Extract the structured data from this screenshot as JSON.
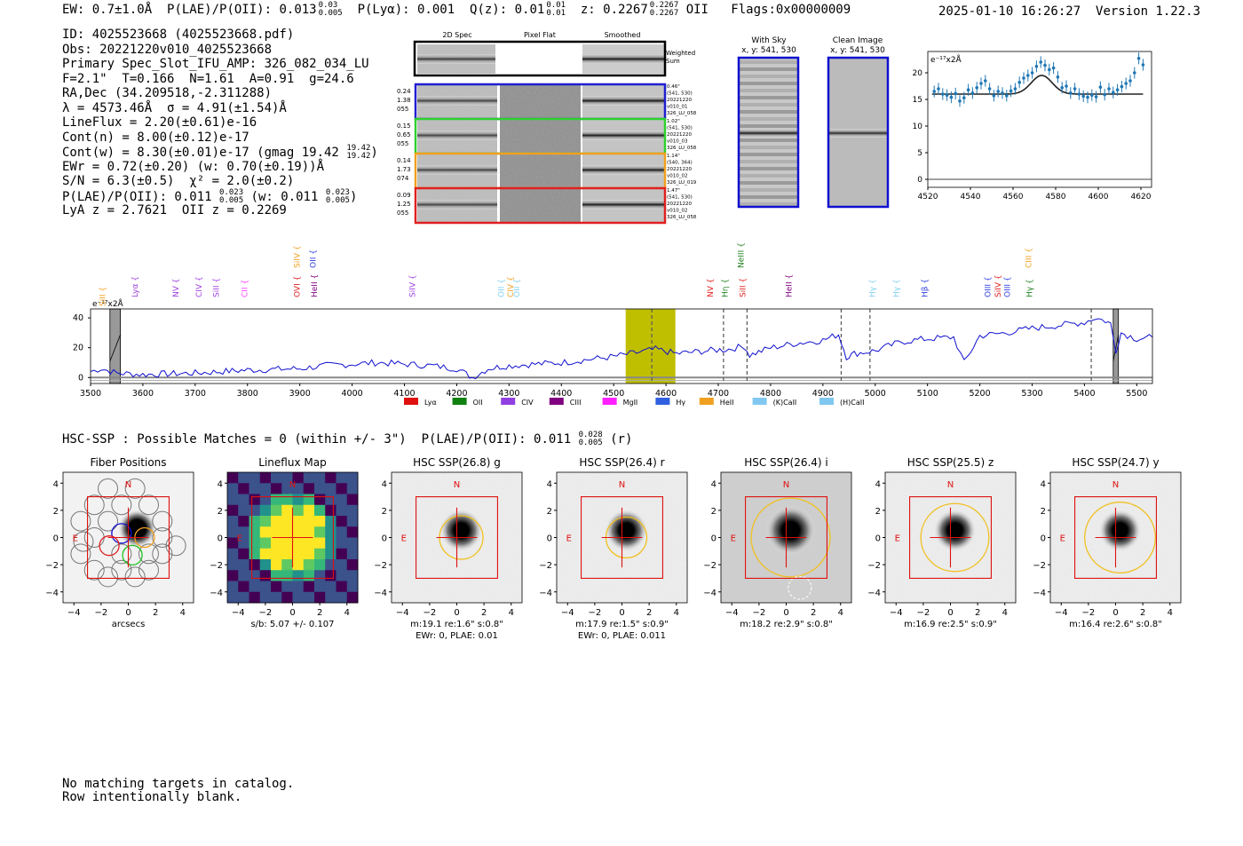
{
  "header": {
    "ew": "EW: 0.7±1.0Å",
    "plae_label": "P(LAE)/P(OII):",
    "plae_value": "0.013",
    "plae_up": "0.03",
    "plae_lo": "0.005",
    "plya": "P(Lyα): 0.001",
    "qz_label": "Q(z):",
    "qz_value": "0.01",
    "qz_up": "0.01",
    "qz_lo": "0.01",
    "z_label": "z:",
    "z_value": "0.2267",
    "z_up": "0.2267",
    "z_lo": "0.2267",
    "z_line": "OII",
    "flags": "Flags:0x00000009",
    "timestamp": "2025-01-10 16:26:27",
    "version": "Version 1.22.3"
  },
  "info": {
    "id": "ID: 4025523668 (4025523668.pdf)",
    "obs": "Obs: 20221220v010_4025523668",
    "primary": "Primary Spec_Slot_IFU_AMP: 326_082_034_LU",
    "params": "F=2.1\"  T=0.166  N=1.61  A=0.91  g=24.6",
    "radec": "RA,Dec (34.209518,-2.311288)",
    "lambda": "λ = 4573.46Å  σ = 4.91(±1.54)Å",
    "lineflux": "LineFlux = 2.20(±0.61)e-16",
    "contn": "Cont(n) = 8.00(±0.12)e-17",
    "contw": "Cont(w) = 8.30(±0.01)e-17 (gmag 19.42",
    "contw_up": "19.42",
    "contw_lo": "19.42",
    "ewr": "EWr = 0.72(±0.20) (w: 0.70(±0.19))Å",
    "sn": "S/N = 6.3(±0.5)  χ² = 2.0(±0.2)",
    "plae2": "P(LAE)/P(OII): 0.011",
    "plae2_up": "0.023",
    "plae2_lo": "0.005",
    "plae2_w": "(w: 0.011",
    "plae2_w_up": "0.023",
    "plae2_w_lo": "0.005",
    "lyaz": "LyA z = 2.7621  OII z = 0.2269"
  },
  "cutouts": {
    "col_headers": [
      "2D Spec",
      "Pixel Flat",
      "Smoothed"
    ],
    "weighted_sum": [
      "Weighted",
      "Sum"
    ],
    "rows": [
      {
        "color": "#1f1fd0",
        "left": [
          "0.24",
          "1.38",
          "055"
        ],
        "right": [
          "0.46\"",
          "(541, 530)",
          "20221220",
          "v010_01",
          "326_LU_058"
        ]
      },
      {
        "color": "#2fd02f",
        "left": [
          "0.15",
          "0.65",
          "055"
        ],
        "right": [
          "1.02\"",
          "(541, 530)",
          "20221220",
          "v010_03",
          "326_LU_058"
        ]
      },
      {
        "color": "#f0a020",
        "left": [
          "0.14",
          "1.73",
          "074"
        ],
        "right": [
          "1.14\"",
          "(540, 364)",
          "20221220",
          "v010_02",
          "326_LU_019"
        ]
      },
      {
        "color": "#e02020",
        "left": [
          "0.09",
          "1.25",
          "055"
        ],
        "right": [
          "1.47\"",
          "(541, 530)",
          "20221220",
          "v010_02",
          "326_LU_058"
        ]
      }
    ],
    "with_sky_title": "With Sky",
    "with_sky_coords": "x, y: 541, 530",
    "clean_title": "Clean Image",
    "clean_coords": "x, y: 541, 530"
  },
  "zoom_chart": {
    "type": "scatter",
    "unit_label": "e⁻¹⁷x2Å",
    "xlim": [
      4520,
      4625
    ],
    "ylim": [
      -1.5,
      24
    ],
    "xticks": [
      4520,
      4540,
      4560,
      4580,
      4600,
      4620
    ],
    "yticks": [
      0,
      5,
      10,
      15,
      20
    ],
    "x": [
      4523,
      4525,
      4527,
      4529,
      4531,
      4533,
      4535,
      4537,
      4539,
      4541,
      4543,
      4545,
      4547,
      4549,
      4551,
      4553,
      4555,
      4557,
      4559,
      4561,
      4563,
      4565,
      4567,
      4569,
      4571,
      4573,
      4575,
      4577,
      4579,
      4581,
      4583,
      4585,
      4587,
      4589,
      4591,
      4593,
      4595,
      4597,
      4599,
      4601,
      4603,
      4605,
      4607,
      4609,
      4611,
      4613,
      4615,
      4617,
      4619,
      4621
    ],
    "y": [
      16.5,
      17.0,
      16.0,
      15.8,
      15.4,
      16.1,
      14.7,
      15.3,
      16.8,
      16.2,
      17.2,
      18.0,
      18.5,
      17.0,
      15.7,
      16.5,
      16.2,
      15.7,
      16.6,
      17.0,
      18.2,
      19.0,
      19.5,
      20.0,
      21.2,
      22.0,
      21.4,
      20.6,
      20.9,
      19.2,
      17.2,
      17.5,
      16.2,
      17.0,
      16.0,
      15.6,
      15.4,
      15.8,
      15.5,
      17.3,
      15.9,
      17.0,
      16.3,
      16.8,
      17.4,
      18.0,
      18.5,
      20.0,
      22.7,
      21.5
    ],
    "fit_baseline": 16,
    "fit_amp": 3.5,
    "fit_center": 4573.46,
    "fit_sigma": 4.91
  },
  "full_spectrum": {
    "type": "line",
    "unit_label": "e⁻¹⁷x2Å",
    "xlim": [
      3500,
      5530
    ],
    "ylim": [
      -4,
      46
    ],
    "xticks": [
      3500,
      3600,
      3700,
      3800,
      3900,
      4000,
      4100,
      4200,
      4300,
      4400,
      4500,
      4600,
      4700,
      4800,
      4900,
      5000,
      5100,
      5200,
      5300,
      5400,
      5500
    ],
    "yticks": [
      0,
      20,
      40
    ],
    "highlight_range": [
      4523,
      4618
    ],
    "marker_lines": [
      4573,
      4710,
      4755,
      4935,
      4990,
      5413
    ],
    "masked_regions": [
      [
        3537,
        3557
      ],
      [
        5455,
        5465
      ]
    ],
    "spectrum_points": [
      [
        3500,
        4
      ],
      [
        3520,
        6
      ],
      [
        3550,
        3
      ],
      [
        3600,
        2
      ],
      [
        3700,
        3
      ],
      [
        3800,
        5
      ],
      [
        3900,
        6
      ],
      [
        3950,
        8
      ],
      [
        4000,
        9
      ],
      [
        4050,
        10
      ],
      [
        4100,
        9
      ],
      [
        4150,
        8
      ],
      [
        4200,
        6
      ],
      [
        4230,
        0
      ],
      [
        4260,
        6
      ],
      [
        4300,
        8
      ],
      [
        4350,
        9
      ],
      [
        4400,
        10
      ],
      [
        4450,
        12
      ],
      [
        4500,
        14
      ],
      [
        4550,
        17
      ],
      [
        4580,
        19
      ],
      [
        4620,
        16
      ],
      [
        4680,
        18
      ],
      [
        4720,
        19
      ],
      [
        4750,
        21
      ],
      [
        4760,
        15
      ],
      [
        4800,
        20
      ],
      [
        4850,
        23
      ],
      [
        4900,
        25
      ],
      [
        4930,
        29
      ],
      [
        4945,
        14
      ],
      [
        4960,
        16
      ],
      [
        5000,
        18
      ],
      [
        5050,
        24
      ],
      [
        5100,
        26
      ],
      [
        5150,
        27
      ],
      [
        5170,
        10
      ],
      [
        5200,
        28
      ],
      [
        5250,
        30
      ],
      [
        5300,
        33
      ],
      [
        5350,
        35
      ],
      [
        5400,
        37
      ],
      [
        5420,
        40
      ],
      [
        5440,
        38
      ],
      [
        5450,
        36
      ],
      [
        5460,
        18
      ],
      [
        5470,
        30
      ],
      [
        5500,
        26
      ],
      [
        5530,
        27
      ]
    ],
    "line_labels": [
      {
        "text": "SiII",
        "x": 3528,
        "color": "#f0a020",
        "row": 2
      },
      {
        "text": "Lyα",
        "x": 3590,
        "color": "#a040e0",
        "row": 1
      },
      {
        "text": "NV",
        "x": 3668,
        "color": "#a040e0",
        "row": 1
      },
      {
        "text": "CIV",
        "x": 3712,
        "color": "#a040e0",
        "row": 1
      },
      {
        "text": "SiII",
        "x": 3745,
        "color": "#a040e0",
        "row": 1
      },
      {
        "text": "CII",
        "x": 3800,
        "color": "#ff40ff",
        "row": 1
      },
      {
        "text": "SiIV",
        "x": 3900,
        "color": "#f0a020",
        "row": 0
      },
      {
        "text": "OVI",
        "x": 3900,
        "color": "#e02020",
        "row": 1
      },
      {
        "text": "OII",
        "x": 3930,
        "color": "#3040e0",
        "row": 0
      },
      {
        "text": "HeII",
        "x": 3933,
        "color": "#800080",
        "row": 1
      },
      {
        "text": "SiIV",
        "x": 4120,
        "color": "#a040e0",
        "row": 1
      },
      {
        "text": "OII",
        "x": 4290,
        "color": "#80d0f0",
        "row": 1
      },
      {
        "text": "CIV",
        "x": 4308,
        "color": "#f0a020",
        "row": 1
      },
      {
        "text": "OII",
        "x": 4320,
        "color": "#80d0f0",
        "row": 1
      },
      {
        "text": "NV",
        "x": 4690,
        "color": "#e02020",
        "row": 1
      },
      {
        "text": "Hη",
        "x": 4718,
        "color": "#208020",
        "row": 1
      },
      {
        "text": "NeIII",
        "x": 4748,
        "color": "#208020",
        "row": 0
      },
      {
        "text": "SiII",
        "x": 4752,
        "color": "#e02020",
        "row": 1
      },
      {
        "text": "HeII",
        "x": 4840,
        "color": "#800080",
        "row": 1
      },
      {
        "text": "Hγ",
        "x": 5000,
        "color": "#80d0f0",
        "row": 1
      },
      {
        "text": "Hγ",
        "x": 5045,
        "color": "#80d0f0",
        "row": 1
      },
      {
        "text": "Hβ",
        "x": 5100,
        "color": "#3040e0",
        "row": 1
      },
      {
        "text": "OIII",
        "x": 5220,
        "color": "#3040e0",
        "row": 1
      },
      {
        "text": "SiIV",
        "x": 5240,
        "color": "#e02020",
        "row": 1
      },
      {
        "text": "OIII",
        "x": 5258,
        "color": "#3040e0",
        "row": 1
      },
      {
        "text": "CIII",
        "x": 5298,
        "color": "#f0a020",
        "row": 0
      },
      {
        "text": "Hγ",
        "x": 5300,
        "color": "#208020",
        "row": 1
      }
    ],
    "legend": [
      {
        "label": "Lyα",
        "color": "#e01010"
      },
      {
        "label": "OII",
        "color": "#108010"
      },
      {
        "label": "CIV",
        "color": "#9040e0"
      },
      {
        "label": "CIII",
        "color": "#800080"
      },
      {
        "label": "MgII",
        "color": "#ff20ff"
      },
      {
        "label": "Hγ",
        "color": "#3060e0"
      },
      {
        "label": "HeII",
        "color": "#f0a020"
      },
      {
        "label": "(K)CaII",
        "color": "#80c8f0"
      },
      {
        "label": "(H)CaII",
        "color": "#80c8f0"
      }
    ]
  },
  "hsc_line": {
    "text": "HSC-SSP : Possible Matches = 0 (within +/- 3\")  P(LAE)/P(OII): 0.011",
    "up": "0.028",
    "lo": "0.005",
    "band": "(r)"
  },
  "imaging": {
    "ticks": [
      -4,
      -2,
      0,
      2,
      4
    ],
    "panels": [
      {
        "title": "Fiber Positions",
        "caption1": "arcsecs",
        "caption2": "",
        "kind": "fiber",
        "aperture_r_arcsec": 0
      },
      {
        "title": "Lineflux Map",
        "caption1": "s/b: 5.07 +/- 0.107",
        "caption2": "",
        "kind": "lineflux",
        "aperture_r_arcsec": 0
      },
      {
        "title": "HSC SSP(26.8) g",
        "caption1": "m:19.1  re:1.6\"  s:0.8\"",
        "caption2": "EWr: 0, PLAE: 0.01",
        "kind": "hsc",
        "aperture_r_arcsec": 1.6
      },
      {
        "title": "HSC SSP(26.4) r",
        "caption1": "m:17.9  re:1.5\"  s:0.9\"",
        "caption2": "EWr: 0, PLAE: 0.011",
        "kind": "hsc",
        "aperture_r_arcsec": 1.5
      },
      {
        "title": "HSC SSP(26.4) i",
        "caption1": "m:18.2  re:2.9\"  s:0.8\"",
        "caption2": "",
        "kind": "hsc_i",
        "aperture_r_arcsec": 2.9
      },
      {
        "title": "HSC SSP(25.5) z",
        "caption1": "m:16.9  re:2.5\"  s:0.9\"",
        "caption2": "",
        "kind": "hsc",
        "aperture_r_arcsec": 2.5
      },
      {
        "title": "HSC SSP(24.7) y",
        "caption1": "m:16.4  re:2.6\"  s:0.8\"",
        "caption2": "",
        "kind": "hsc",
        "aperture_r_arcsec": 2.6
      }
    ],
    "north_label": "N",
    "east_label": "E"
  },
  "footer": {
    "line1": "No matching targets in catalog.",
    "line2": "Row intentionally blank."
  }
}
